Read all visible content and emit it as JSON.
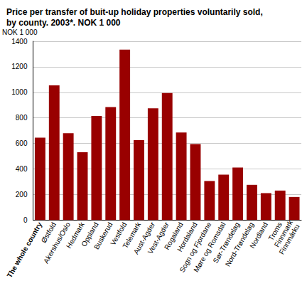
{
  "chart_data": {
    "type": "bar",
    "title": "Price per transfer of buit-up holiday properties voluntarily sold,\nby county. 2003*. NOK 1 000",
    "y_label": "NOK 1 000",
    "categories": [
      "The whole country",
      "Østfold",
      "Akershus/Oslo",
      "Hedmark",
      "Oppland",
      "Buskerud",
      "Vestfold",
      "Telemark",
      "Aust-Agder",
      "Vest-Agder",
      "Rogaland",
      "Hordaland",
      "Sogn og Fjordane",
      "Møre og Romsdal",
      "Sør-Trøndelag",
      "Nord-Trøndelag",
      "Nordland",
      "Troms",
      "Finnmark\nFinnmárku"
    ],
    "values": [
      645,
      1055,
      680,
      530,
      815,
      885,
      1335,
      625,
      875,
      995,
      685,
      595,
      305,
      355,
      410,
      275,
      210,
      230,
      180
    ],
    "color": "#990000",
    "ylim": [
      0,
      1400
    ],
    "yticks": [
      0,
      200,
      400,
      600,
      800,
      1000,
      1200,
      1400
    ],
    "grid": true
  }
}
